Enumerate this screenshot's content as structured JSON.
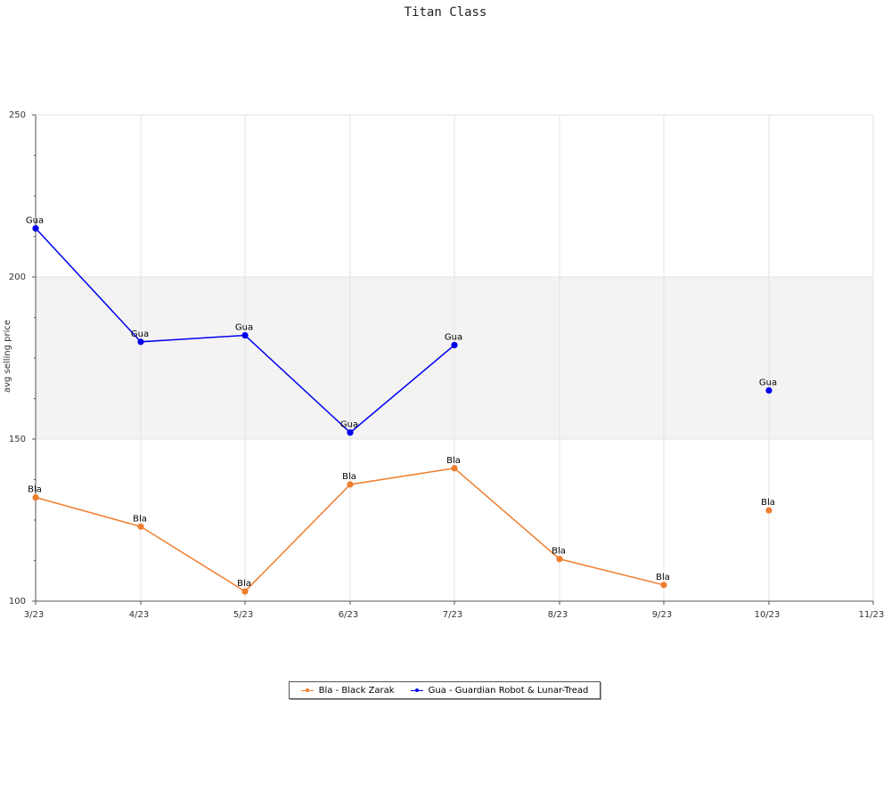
{
  "chart_data": {
    "type": "line",
    "title": "Titan Class",
    "xlabel": "",
    "ylabel": "avg selling price",
    "x_ticks": [
      "3/23",
      "4/23",
      "5/23",
      "6/23",
      "7/23",
      "8/23",
      "9/23",
      "10/23",
      "11/23"
    ],
    "y_ticks": [
      100,
      150,
      200,
      250
    ],
    "ylim": [
      100,
      250
    ],
    "band": [
      150,
      200
    ],
    "grid": true,
    "legend_position": "bottom-center",
    "series": [
      {
        "name": "Bla - Black Zarak",
        "point_label": "Bla",
        "color": "#ee7d2e",
        "values": [
          132,
          123,
          103,
          136,
          141,
          113,
          105,
          null,
          128,
          null
        ]
      },
      {
        "name": "Gua - Guardian Robot & Lunar-Tread",
        "point_label": "Gua",
        "color": "#0000ee",
        "values": [
          215,
          180,
          182,
          152,
          179,
          null,
          null,
          null,
          165,
          null
        ]
      }
    ],
    "x_index": [
      "3/23",
      "4/23",
      "5/23",
      "6/23",
      "7/23",
      "8/23",
      "9/23",
      "10/23",
      "10/23",
      "11/23"
    ]
  }
}
